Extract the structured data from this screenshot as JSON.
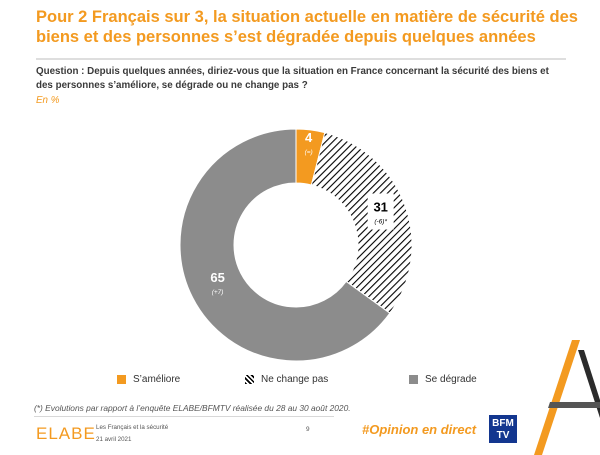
{
  "header": {
    "title": "Pour 2 Français sur 3, la situation actuelle en matière de sécurité des biens et des personnes s’est dégradée depuis quelques années",
    "question": "Question : Depuis quelques années, diriez-vous que la situation en France concernant la sécurité des biens et des personnes s’améliore, se dégrade ou ne change pas ?",
    "unit": "En %"
  },
  "colors": {
    "accent": "#f39a20",
    "grey": "#8c8c8c",
    "hatch": "#000000",
    "brand_blue": "#13368f"
  },
  "chart_data": {
    "type": "pie",
    "style": "donut",
    "unit": "%",
    "title": "",
    "labels": [
      "S’améliore",
      "Ne change pas",
      "Se dégrade"
    ],
    "values": [
      4,
      31,
      65
    ],
    "value_labels": [
      "4",
      "31",
      "65"
    ],
    "changes": [
      "(=)",
      "(-6)*",
      "(+7)"
    ],
    "fills": [
      "orange",
      "hatched",
      "grey"
    ],
    "legend_position": "bottom"
  },
  "legend": [
    {
      "label": "S’améliore",
      "swatch": "orange"
    },
    {
      "label": "Ne change pas",
      "swatch": "hatch"
    },
    {
      "label": "Se dégrade",
      "swatch": "grey"
    }
  ],
  "footer": {
    "footnote": "(*) Evolutions par rapport à l’enquête ELABE/BFMTV réalisée du 28 au 30 août 2020.",
    "logo": "ELABE",
    "survey": "Les Français et la sécurité",
    "date": "21 avril 2021",
    "page": "9",
    "hashtag": "#Opinion en direct",
    "brand_line1": "BFM",
    "brand_line2": "TV"
  }
}
